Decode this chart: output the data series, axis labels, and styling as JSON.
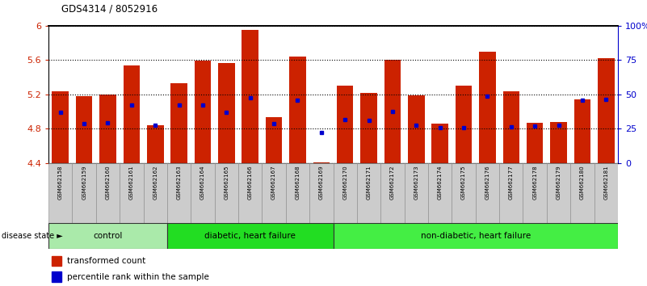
{
  "title": "GDS4314 / 8052916",
  "samples": [
    "GSM662158",
    "GSM662159",
    "GSM662160",
    "GSM662161",
    "GSM662162",
    "GSM662163",
    "GSM662164",
    "GSM662165",
    "GSM662166",
    "GSM662167",
    "GSM662168",
    "GSM662169",
    "GSM662170",
    "GSM662171",
    "GSM662172",
    "GSM662173",
    "GSM662174",
    "GSM662175",
    "GSM662176",
    "GSM662177",
    "GSM662178",
    "GSM662179",
    "GSM662180",
    "GSM662181"
  ],
  "red_values": [
    5.24,
    5.18,
    5.2,
    5.54,
    4.84,
    5.33,
    5.59,
    5.57,
    5.95,
    4.93,
    5.64,
    4.41,
    5.3,
    5.22,
    5.6,
    5.19,
    4.86,
    5.3,
    5.7,
    5.24,
    4.87,
    4.88,
    5.14,
    5.62
  ],
  "blue_values": [
    4.99,
    4.86,
    4.87,
    5.08,
    4.84,
    5.08,
    5.08,
    4.99,
    5.16,
    4.86,
    5.13,
    4.76,
    4.91,
    4.9,
    5.0,
    4.84,
    4.81,
    4.81,
    5.18,
    4.82,
    4.83,
    4.84,
    5.13,
    5.14
  ],
  "ymin": 4.4,
  "ymax": 6.0,
  "yticks_left": [
    4.4,
    4.8,
    5.2,
    5.6,
    6.0
  ],
  "ytick_left_labels": [
    "4.4",
    "4.8",
    "5.2",
    "5.6",
    "6"
  ],
  "yticks_right": [
    0,
    25,
    50,
    75,
    100
  ],
  "ytick_right_labels": [
    "0",
    "25",
    "50",
    "75",
    "100%"
  ],
  "groups": [
    {
      "label": "control",
      "start": 0,
      "end": 5,
      "color": "#AAEAAA"
    },
    {
      "label": "diabetic, heart failure",
      "start": 5,
      "end": 12,
      "color": "#22DD22"
    },
    {
      "label": "non-diabetic, heart failure",
      "start": 12,
      "end": 24,
      "color": "#44EE44"
    }
  ],
  "bar_color": "#CC2200",
  "blue_color": "#0000CC",
  "xtick_box_color": "#CCCCCC",
  "legend_items": [
    {
      "label": "transformed count",
      "color": "#CC2200"
    },
    {
      "label": "percentile rank within the sample",
      "color": "#0000CC"
    }
  ]
}
